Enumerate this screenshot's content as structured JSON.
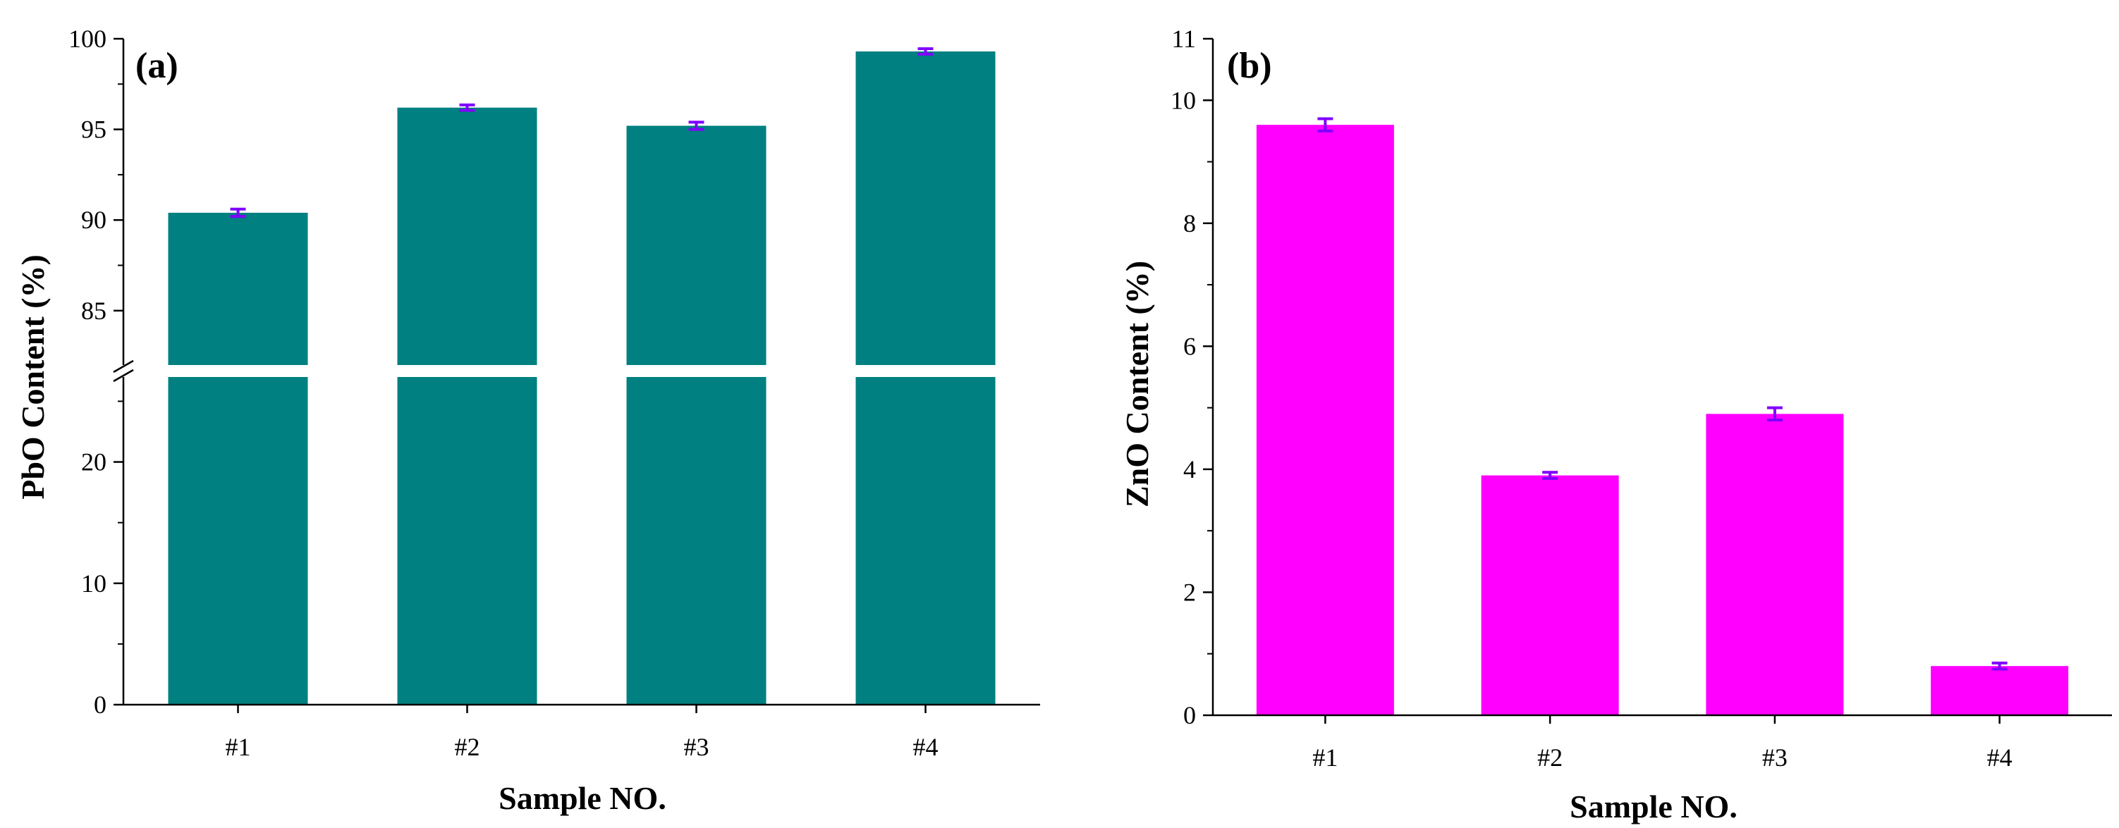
{
  "chart_data": [
    {
      "panel": "(a)",
      "type": "bar",
      "categories": [
        "#1",
        "#2",
        "#3",
        "#4"
      ],
      "values": [
        90.4,
        96.2,
        95.2,
        99.3
      ],
      "errors": [
        0.2,
        0.15,
        0.2,
        0.15
      ],
      "xlabel": "Sample NO.",
      "ylabel": "PbO Content (%)",
      "axis_break": {
        "from": 27,
        "to": 82
      },
      "lower_range": [
        0,
        27
      ],
      "upper_range": [
        82,
        100
      ],
      "lower_ticks": [
        "0",
        "10",
        "20"
      ],
      "upper_ticks": [
        "85",
        "90",
        "95",
        "100"
      ],
      "bar_color": "#008080",
      "error_color": "#7f00ff"
    },
    {
      "panel": "(b)",
      "type": "bar",
      "categories": [
        "#1",
        "#2",
        "#3",
        "#4"
      ],
      "values": [
        9.6,
        3.9,
        4.9,
        0.8
      ],
      "errors": [
        0.1,
        0.05,
        0.1,
        0.05
      ],
      "xlabel": "Sample NO.",
      "ylabel": "ZnO Content (%)",
      "ylim": [
        0,
        11
      ],
      "ticks": [
        "0",
        "2",
        "4",
        "6",
        "8",
        "10",
        "11"
      ],
      "bar_color": "#ff00ff",
      "error_color": "#7f00ff"
    }
  ]
}
